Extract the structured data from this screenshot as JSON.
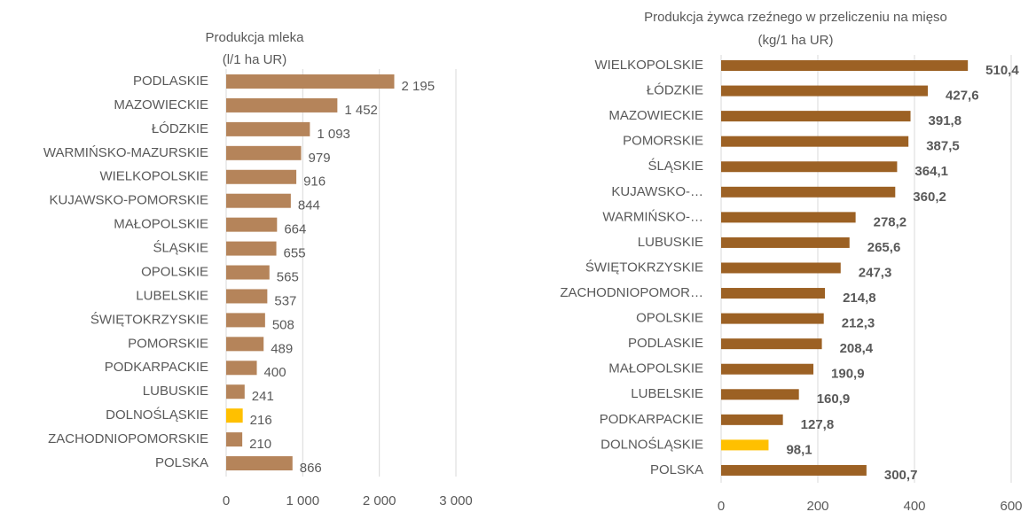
{
  "chart_data": [
    {
      "type": "bar",
      "orientation": "horizontal",
      "title": "Produkcja mleka",
      "subtitle": "(l/1 ha UR)",
      "categories": [
        "PODLASKIE",
        "MAZOWIECKIE",
        "ŁÓDZKIE",
        "WARMIŃSKO-MAZURSKIE",
        "WIELKOPOLSKIE",
        "KUJAWSKO-POMORSKIE",
        "MAŁOPOLSKIE",
        "ŚLĄSKIE",
        "OPOLSKIE",
        "LUBELSKIE",
        "ŚWIĘTOKRZYSKIE",
        "POMORSKIE",
        "PODKARPACKIE",
        "LUBUSKIE",
        "DOLNOŚLĄSKIE",
        "ZACHODNIOPOMORSKIE",
        "POLSKA"
      ],
      "values": [
        2195,
        1452,
        1093,
        979,
        916,
        844,
        664,
        655,
        565,
        537,
        508,
        489,
        400,
        241,
        216,
        210,
        866
      ],
      "value_labels": [
        "2 195",
        "1 452",
        "1 093",
        "979",
        "916",
        "844",
        "664",
        "655",
        "565",
        "537",
        "508",
        "489",
        "400",
        "241",
        "216",
        "210",
        "866"
      ],
      "colors": [
        "#b5845a",
        "#b5845a",
        "#b5845a",
        "#b5845a",
        "#b5845a",
        "#b5845a",
        "#b5845a",
        "#b5845a",
        "#b5845a",
        "#b5845a",
        "#b5845a",
        "#b5845a",
        "#b5845a",
        "#b5845a",
        "#ffc000",
        "#b5845a",
        "#b5845a"
      ],
      "xlim": [
        0,
        3000
      ],
      "xticks": [
        0,
        {
          "value": 1000,
          "label": "1 000"
        },
        {
          "value": 2000,
          "label": "2 000"
        },
        {
          "value": 3000,
          "label": "3 000"
        }
      ],
      "grid": true,
      "bold_labels": false
    },
    {
      "type": "bar",
      "orientation": "horizontal",
      "title": "Produkcja żywca rzeźnego w przeliczeniu na mięso",
      "subtitle": "(kg/1 ha UR)",
      "categories": [
        "WIELKOPOLSKIE",
        "ŁÓDZKIE",
        "MAZOWIECKIE",
        "POMORSKIE",
        "ŚLĄSKIE",
        "KUJAWSKO-…",
        "WARMIŃSKO-…",
        "LUBUSKIE",
        "ŚWIĘTOKRZYSKIE",
        "ZACHODNIOPOMOR…",
        "OPOLSKIE",
        "PODLASKIE",
        "MAŁOPOLSKIE",
        "LUBELSKIE",
        "PODKARPACKIE",
        "DOLNOŚLĄSKIE",
        "POLSKA"
      ],
      "values": [
        510.4,
        427.6,
        391.8,
        387.5,
        364.1,
        360.2,
        278.2,
        265.6,
        247.3,
        214.8,
        212.3,
        208.4,
        190.9,
        160.9,
        127.8,
        98.1,
        300.7
      ],
      "value_labels": [
        "510,4",
        "427,6",
        "391,8",
        "387,5",
        "364,1",
        "360,2",
        "278,2",
        "265,6",
        "247,3",
        "214,8",
        "212,3",
        "208,4",
        "190,9",
        "160,9",
        "127,8",
        "98,1",
        "300,7"
      ],
      "colors": [
        "#9c6124",
        "#9c6124",
        "#9c6124",
        "#9c6124",
        "#9c6124",
        "#9c6124",
        "#9c6124",
        "#9c6124",
        "#9c6124",
        "#9c6124",
        "#9c6124",
        "#9c6124",
        "#9c6124",
        "#9c6124",
        "#9c6124",
        "#ffc000",
        "#9c6124"
      ],
      "xlim": [
        0,
        600
      ],
      "xticks": [
        0,
        200,
        400,
        600
      ],
      "grid": true,
      "bold_labels": true
    }
  ]
}
